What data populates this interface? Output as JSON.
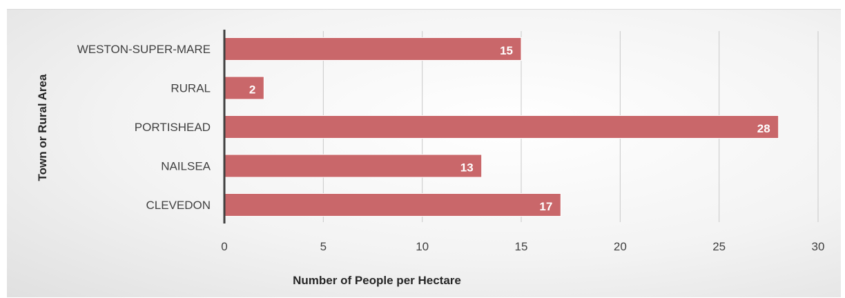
{
  "chart_data": {
    "type": "bar",
    "orientation": "horizontal",
    "categories": [
      "WESTON-SUPER-MARE",
      "RURAL",
      "PORTISHEAD",
      "NAILSEA",
      "CLEVEDON"
    ],
    "values": [
      15,
      2,
      28,
      13,
      17
    ],
    "value_labels": [
      "15",
      "2",
      "28",
      "13",
      "17"
    ],
    "xlabel": "Number of People per Hectare",
    "ylabel": "Town or Rural Area",
    "xlim": [
      0,
      30
    ],
    "xticks": [
      0,
      5,
      10,
      15,
      20,
      25,
      30
    ],
    "bar_color": "#c9676a",
    "grid": true,
    "legend": "none"
  }
}
